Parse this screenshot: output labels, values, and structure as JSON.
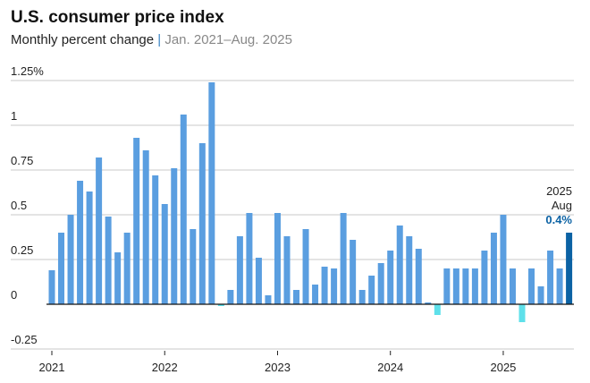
{
  "chart_data": {
    "type": "bar",
    "title": "U.S. consumer price index",
    "subtitle": "Monthly percent change",
    "subtitle_range": "Jan. 2021–Aug. 2025",
    "xlabel": "",
    "ylabel": "",
    "ylim": [
      -0.25,
      1.25
    ],
    "grid": true,
    "y_ticks": [
      {
        "value": 1.25,
        "label": "1.25%"
      },
      {
        "value": 1,
        "label": "1"
      },
      {
        "value": 0.75,
        "label": "0.75"
      },
      {
        "value": 0.5,
        "label": "0.5"
      },
      {
        "value": 0.25,
        "label": "0.25"
      },
      {
        "value": 0,
        "label": "0"
      },
      {
        "value": -0.25,
        "label": "-0.25"
      }
    ],
    "x_ticks": [
      "2021",
      "2022",
      "2023",
      "2024",
      "2025"
    ],
    "start": "2021-01",
    "categories": [
      "2021-01",
      "2021-02",
      "2021-03",
      "2021-04",
      "2021-05",
      "2021-06",
      "2021-07",
      "2021-08",
      "2021-09",
      "2021-10",
      "2021-11",
      "2021-12",
      "2022-01",
      "2022-02",
      "2022-03",
      "2022-04",
      "2022-05",
      "2022-06",
      "2022-07",
      "2022-08",
      "2022-09",
      "2022-10",
      "2022-11",
      "2022-12",
      "2023-01",
      "2023-02",
      "2023-03",
      "2023-04",
      "2023-05",
      "2023-06",
      "2023-07",
      "2023-08",
      "2023-09",
      "2023-10",
      "2023-11",
      "2023-12",
      "2024-01",
      "2024-02",
      "2024-03",
      "2024-04",
      "2024-05",
      "2024-06",
      "2024-07",
      "2024-08",
      "2024-09",
      "2024-10",
      "2024-11",
      "2024-12",
      "2025-01",
      "2025-02",
      "2025-03",
      "2025-04",
      "2025-05",
      "2025-06",
      "2025-07",
      "2025-08"
    ],
    "values": [
      0.19,
      0.4,
      0.5,
      0.69,
      0.63,
      0.82,
      0.49,
      0.29,
      0.4,
      0.93,
      0.86,
      0.72,
      0.56,
      0.76,
      1.06,
      0.42,
      0.9,
      1.24,
      -0.01,
      0.08,
      0.38,
      0.51,
      0.26,
      0.05,
      0.51,
      0.38,
      0.08,
      0.42,
      0.11,
      0.21,
      0.2,
      0.51,
      0.36,
      0.08,
      0.16,
      0.23,
      0.3,
      0.44,
      0.38,
      0.31,
      0.01,
      -0.06,
      0.2,
      0.2,
      0.2,
      0.2,
      0.3,
      0.4,
      0.5,
      0.2,
      -0.1,
      0.2,
      0.1,
      0.3,
      0.2,
      0.4
    ],
    "colors": {
      "positive": "#5a9ee0",
      "negative": "#5ee0ea",
      "latest": "#0b62a4",
      "grid": "#d4d4d4",
      "zero": "#111111"
    },
    "annotation": {
      "year": "2025",
      "month": "Aug",
      "value": "0.4%"
    }
  }
}
